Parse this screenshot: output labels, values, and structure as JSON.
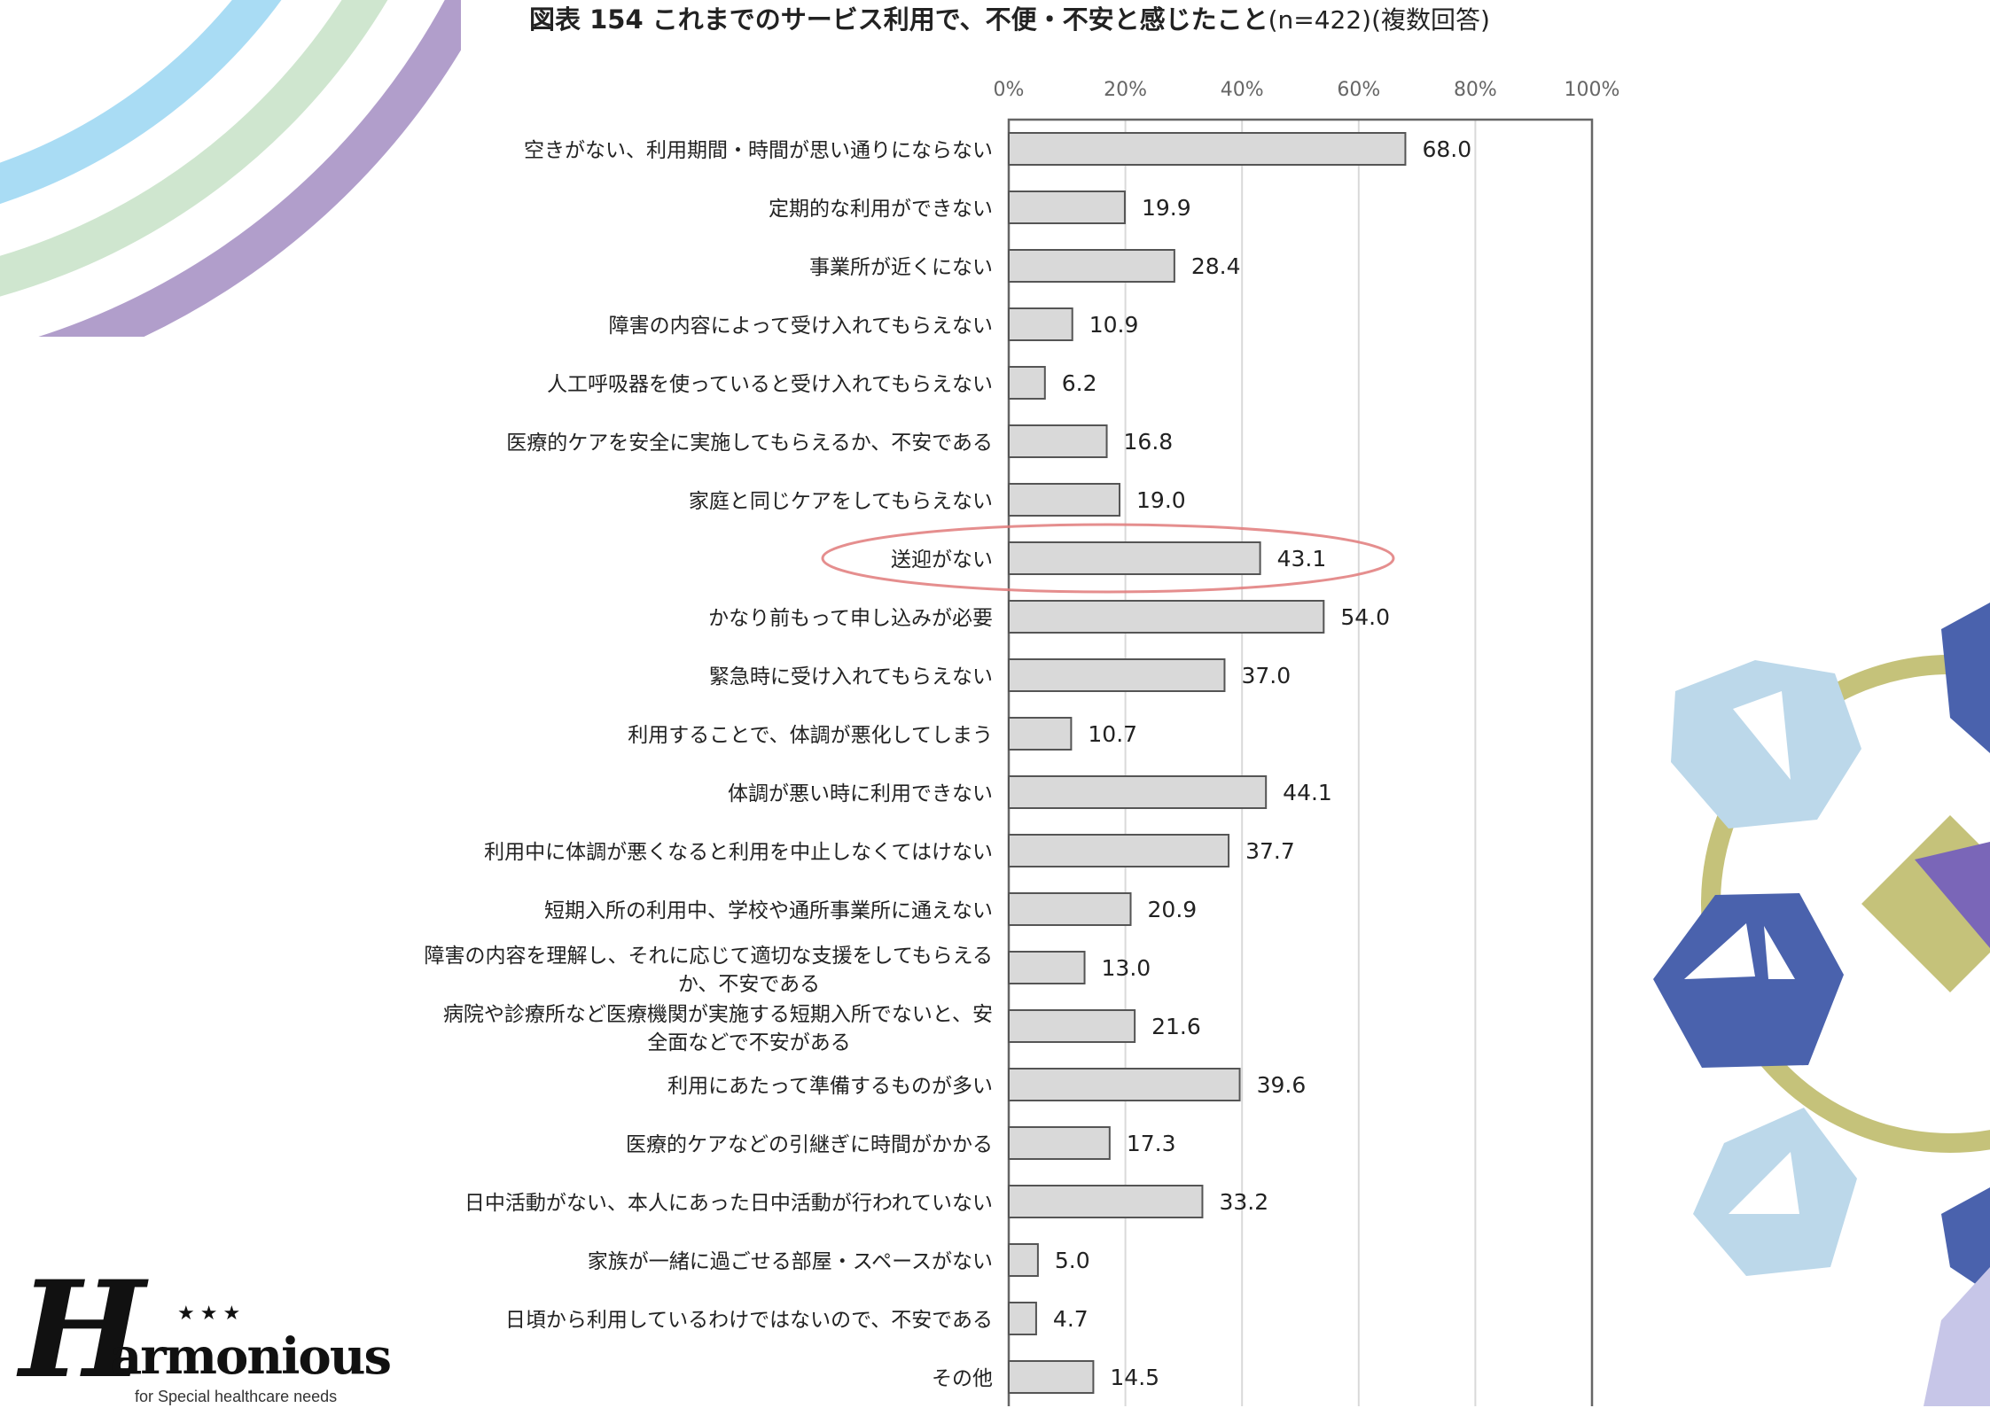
{
  "chart_data": {
    "type": "bar",
    "orientation": "horizontal",
    "title": "図表 154 これまでのサービス利用で、不便・不安と感じたこと",
    "subtitle": "(n=422)(複数回答)",
    "xlim": [
      0,
      100
    ],
    "x_ticks": [
      "0%",
      "20%",
      "40%",
      "60%",
      "80%",
      "100%"
    ],
    "grid": true,
    "highlighted_category": "送迎がない",
    "categories": [
      [
        "空きがない、利用期間・時間が思い通りにならない"
      ],
      [
        "定期的な利用ができない"
      ],
      [
        "事業所が近くにない"
      ],
      [
        "障害の内容によって受け入れてもらえない"
      ],
      [
        "人工呼吸器を使っていると受け入れてもらえない"
      ],
      [
        "医療的ケアを安全に実施してもらえるか、不安である"
      ],
      [
        "家庭と同じケアをしてもらえない"
      ],
      [
        "送迎がない"
      ],
      [
        "かなり前もって申し込みが必要"
      ],
      [
        "緊急時に受け入れてもらえない"
      ],
      [
        "利用することで、体調が悪化してしまう"
      ],
      [
        "体調が悪い時に利用できない"
      ],
      [
        "利用中に体調が悪くなると利用を中止しなくてはけない"
      ],
      [
        "短期入所の利用中、学校や通所事業所に通えない"
      ],
      [
        "障害の内容を理解し、それに応じて適切な支援をしてもらえる",
        "か、不安である"
      ],
      [
        "病院や診療所など医療機関が実施する短期入所でないと、安",
        "全面などで不安がある"
      ],
      [
        "利用にあたって準備するものが多い"
      ],
      [
        "医療的ケアなどの引継ぎに時間がかかる"
      ],
      [
        "日中活動がない、本人にあった日中活動が行われていない"
      ],
      [
        "家族が一緒に過ごせる部屋・スペースがない"
      ],
      [
        "日頃から利用しているわけではないので、不安である"
      ],
      [
        "その他"
      ]
    ],
    "values": [
      68.0,
      19.9,
      28.4,
      10.9,
      6.2,
      16.8,
      19.0,
      43.1,
      54.0,
      37.0,
      10.7,
      44.1,
      37.7,
      20.9,
      13.0,
      21.6,
      39.6,
      17.3,
      33.2,
      5.0,
      4.7,
      14.5
    ],
    "value_labels": [
      "68.0",
      "19.9",
      "28.4",
      "10.9",
      "6.2",
      "16.8",
      "19.0",
      "43.1",
      "54.0",
      "37.0",
      "10.7",
      "44.1",
      "37.7",
      "20.9",
      "13.0",
      "21.6",
      "39.6",
      "17.3",
      "33.2",
      "5.0",
      "4.7",
      "14.5"
    ]
  },
  "colors": {
    "bar_fill": "#d9d9d9",
    "bar_stroke": "#555555",
    "grid": "#d9d9d9",
    "axis": "#666666",
    "highlight": "#e07a7a",
    "deco_blue": "#a9dcf4",
    "deco_green": "#cfe6cf",
    "deco_purple": "#b19ecb",
    "deco_navy": "#4a62ad",
    "deco_light_blue": "#bcd8ea",
    "deco_olive": "#c5c27a",
    "deco_violet": "#7a66b8"
  },
  "logo": {
    "initial": "H",
    "word": "armonious",
    "stars": "★★★",
    "tagline": "for Special healthcare needs"
  }
}
